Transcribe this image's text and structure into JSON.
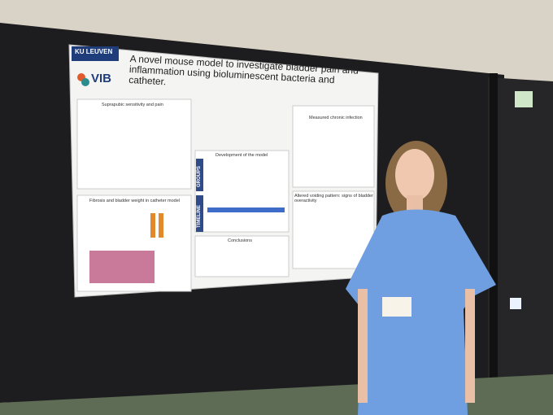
{
  "poster": {
    "logos": [
      "KU LEUVEN",
      "VIB"
    ],
    "title": "A novel mouse model to investigate bladder pain and inflammation using bioluminescent bacteria and catheter.",
    "sections": [
      "Suprapubic sensitivity and pain",
      "Fibrosis and bladder weight in catheter model",
      "Development of the model",
      "Conclusions",
      "Measured chronic infection",
      "Altered voiding pattern: signs of bladder overactivity"
    ],
    "side_labels": [
      "GROUPS",
      "TIMELINE"
    ]
  }
}
